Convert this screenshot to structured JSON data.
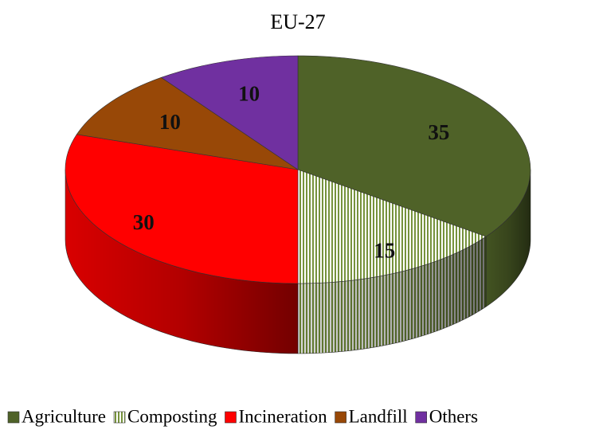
{
  "chart_data": {
    "type": "pie",
    "title": "EU-27",
    "categories": [
      "Agriculture",
      "Composting",
      "Incineration",
      "Landfill",
      "Others"
    ],
    "values": [
      35,
      15,
      30,
      10,
      10
    ],
    "colors": [
      "#4f6228",
      "#76923c",
      "#ff0000",
      "#984807",
      "#7030a0"
    ],
    "hatch": [
      false,
      true,
      false,
      false,
      false
    ],
    "legend": "bottom"
  }
}
